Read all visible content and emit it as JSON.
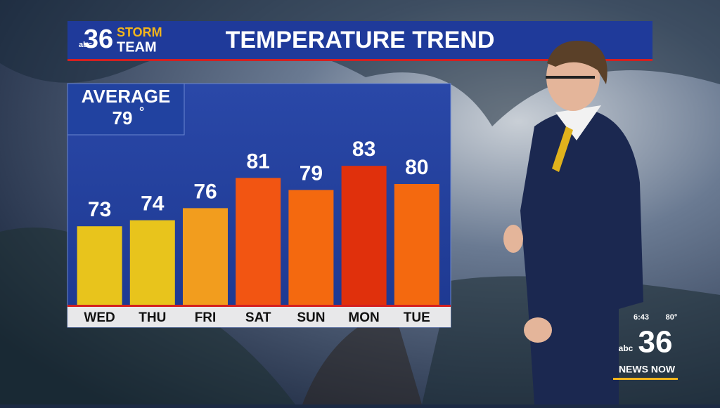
{
  "branding": {
    "network": "abc",
    "number": "36",
    "line1": "STORM",
    "line2": "TEAM"
  },
  "chart_data": {
    "type": "bar",
    "title": "TEMPERATURE TREND",
    "average": {
      "label": "AVERAGE",
      "value": 79,
      "unit": "°"
    },
    "categories": [
      "WED",
      "THU",
      "FRI",
      "SAT",
      "SUN",
      "MON",
      "TUE"
    ],
    "values": [
      73,
      74,
      76,
      81,
      79,
      83,
      80
    ],
    "colors": [
      "#e8c41c",
      "#e8c41c",
      "#f29d1e",
      "#f25512",
      "#f4690f",
      "#e0300c",
      "#f4690f"
    ],
    "ylim": [
      60,
      90
    ]
  },
  "bug": {
    "time": "6:43",
    "temperature": "80°",
    "network": "abc",
    "number": "36",
    "tagline": "NEWS NOW"
  }
}
